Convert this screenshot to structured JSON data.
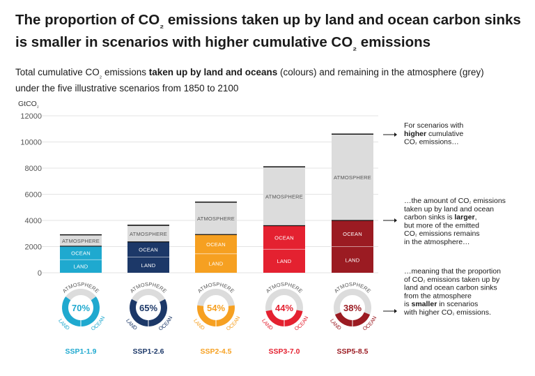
{
  "title_parts": [
    "The proportion of CO",
    "₂",
    " emissions taken up by land and ocean carbon sinks",
    "is smaller in scenarios with higher cumulative CO",
    "₂",
    " emissions"
  ],
  "subtitle_parts": [
    "Total cumulative CO",
    "₂",
    " emissions ",
    "taken up by land and oceans",
    " (colours) and remaining in the atmosphere (grey)",
    "under the five illustrative scenarios from 1850 to 2100"
  ],
  "colors": {
    "atmosphere": "#dcdcdc",
    "ssp1_19": "#1fa9cf",
    "ssp1_26": "#1c3868",
    "ssp2_45": "#f6a021",
    "ssp3_70": "#e42130",
    "ssp5_85": "#9b1b22"
  },
  "chart_data": {
    "type": "bar",
    "stacked": true,
    "y_unit_parts": [
      "GtCO",
      "₂"
    ],
    "ylim": [
      0,
      12000
    ],
    "yticks": [
      0,
      2000,
      4000,
      6000,
      8000,
      10000,
      12000
    ],
    "grid": true,
    "segment_labels": {
      "land": "LAND",
      "ocean": "OCEAN",
      "atmosphere": "ATMOSPHERE"
    },
    "categories": [
      "SSP1-1.9",
      "SSP1-2.6",
      "SSP2-4.5",
      "SSP3-7.0",
      "SSP5-8.5"
    ],
    "series": [
      {
        "name": "LAND",
        "values": [
          1000,
          1200,
          1450,
          1800,
          2000
        ]
      },
      {
        "name": "OCEAN",
        "values": [
          1030,
          1160,
          1470,
          1800,
          2000
        ]
      },
      {
        "name": "ATMOSPHERE",
        "values": [
          870,
          1270,
          2480,
          4500,
          6600
        ]
      }
    ],
    "totals": [
      2900,
      3630,
      5400,
      8100,
      10600
    ],
    "donut_percent_uptake": [
      70,
      65,
      54,
      44,
      38
    ],
    "donut_percent_labels": [
      "70%",
      "65%",
      "54%",
      "44%",
      "38%"
    ],
    "donut_arc_labels": {
      "top": "ATMOSPHERE",
      "left": "LAND",
      "right": "OCEAN"
    }
  },
  "annotations": [
    {
      "lines": [
        [
          {
            "t": "For scenarios with"
          }
        ],
        [
          {
            "t": "higher",
            "b": true
          },
          {
            "t": " cumulative"
          }
        ],
        [
          {
            "t": "CO"
          },
          {
            "t": "₂",
            "sub": true
          },
          {
            "t": " emissions…"
          }
        ]
      ]
    },
    {
      "lines": [
        [
          {
            "t": "…the amount of CO"
          },
          {
            "t": "₂",
            "sub": true
          },
          {
            "t": " emissions"
          }
        ],
        [
          {
            "t": "taken up by land and ocean"
          }
        ],
        [
          {
            "t": "carbon sinks is "
          },
          {
            "t": "larger",
            "b": true
          },
          {
            "t": ","
          }
        ],
        [
          {
            "t": "but more of the emitted"
          }
        ],
        [
          {
            "t": "CO"
          },
          {
            "t": "₂",
            "sub": true
          },
          {
            "t": " emissions remains"
          }
        ],
        [
          {
            "t": "in the atmosphere…"
          }
        ]
      ]
    },
    {
      "lines": [
        [
          {
            "t": "…meaning that the proportion"
          }
        ],
        [
          {
            "t": "of CO"
          },
          {
            "t": "₂",
            "sub": true
          },
          {
            "t": " emissions taken up by"
          }
        ],
        [
          {
            "t": "land and ocean carbon sinks"
          }
        ],
        [
          {
            "t": "from the atmosphere"
          }
        ],
        [
          {
            "t": "is "
          },
          {
            "t": "smaller",
            "b": true
          },
          {
            "t": " in scenarios"
          }
        ],
        [
          {
            "t": "with higher CO"
          },
          {
            "t": "₂",
            "sub": true
          },
          {
            "t": " emissions."
          }
        ]
      ]
    }
  ]
}
